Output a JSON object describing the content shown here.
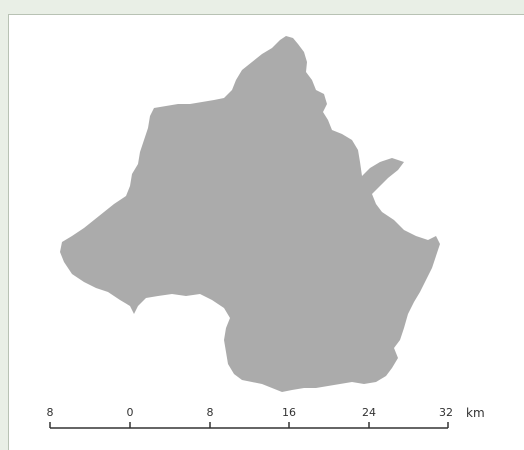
{
  "map": {
    "region_fill": "#ababab",
    "background": "#ffffff",
    "outer_background": "#e9efe6"
  },
  "scale_bar": {
    "ticks": [
      "8",
      "0",
      "8",
      "16",
      "24",
      "32"
    ],
    "unit": "km",
    "line_color": "#333333"
  }
}
